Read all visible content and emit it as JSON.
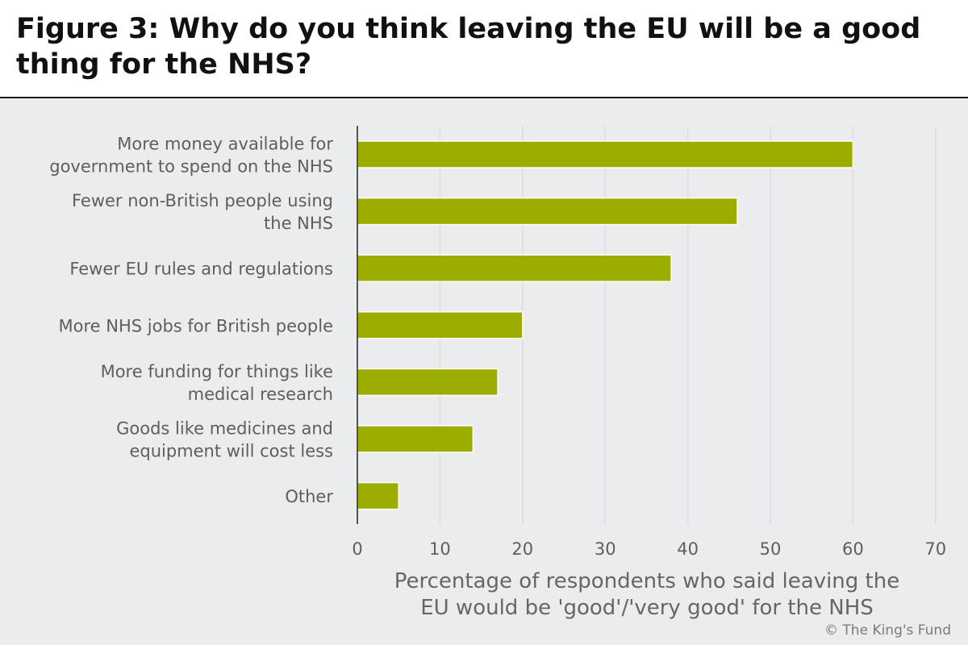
{
  "title": "Figure 3: Why do you think leaving the EU will be a good thing for the NHS?",
  "credit": "© The King's Fund",
  "colors": {
    "bar": "#9dad00",
    "bar_stroke": "#ffffff",
    "grid": "#dcdde0",
    "axis": "#222222",
    "background": "#ebecee"
  },
  "chart_data": {
    "type": "bar",
    "orientation": "horizontal",
    "categories": [
      [
        "More money available for",
        "government to spend on the NHS"
      ],
      [
        "Fewer non-British people using",
        "the NHS"
      ],
      [
        "Fewer EU rules and regulations"
      ],
      [
        "More NHS jobs for British people"
      ],
      [
        "More funding for things like",
        "medical research"
      ],
      [
        "Goods like medicines and",
        "equipment will cost less"
      ],
      [
        "Other"
      ]
    ],
    "values": [
      60,
      46,
      38,
      20,
      17,
      14,
      5
    ],
    "xlim": [
      0,
      70
    ],
    "xticks": [
      "0",
      "10",
      "20",
      "30",
      "40",
      "50",
      "60",
      "70"
    ],
    "xlabel": [
      "Percentage of respondents who said leaving the",
      "EU would be 'good'/'very good' for the NHS"
    ],
    "ylabel": "",
    "grid": "vertical",
    "legend": "none"
  }
}
